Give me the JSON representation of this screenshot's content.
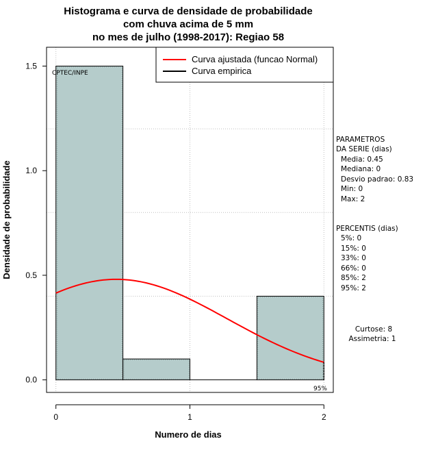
{
  "chart_data": {
    "type": "bar",
    "title_lines": [
      "Histograma e curva de densidade de probabilidade",
      "com chuva acima de 5 mm",
      "no mes de julho (1998-2017): Regiao 58"
    ],
    "xlabel": "Numero de dias",
    "ylabel": "Densidade de probabilidade",
    "xlim": [
      -0.07,
      2.07
    ],
    "ylim": [
      -0.06,
      1.59
    ],
    "x_ticks": [
      0,
      1,
      2
    ],
    "y_ticks": [
      0.0,
      0.5,
      1.0,
      1.5
    ],
    "x_tick_labels": [
      "0",
      "1",
      "2"
    ],
    "y_tick_labels": [
      "0.0",
      "0.5",
      "1.0",
      "1.5"
    ],
    "grid_x": [
      0,
      1,
      2
    ],
    "grid_y": [
      0.4,
      0.8,
      1.2
    ],
    "bins": [
      {
        "start": 0.0,
        "end": 0.5,
        "density": 1.5
      },
      {
        "start": 0.5,
        "end": 1.0,
        "density": 0.1
      },
      {
        "start": 1.0,
        "end": 1.5,
        "density": 0.0
      },
      {
        "start": 1.5,
        "end": 2.0,
        "density": 0.4
      }
    ],
    "fitted_curve": {
      "name": "Curva ajustada (funcao Normal)",
      "distribution": "normal",
      "mean": 0.45,
      "sd": 0.83,
      "x_range": [
        0,
        2
      ]
    },
    "empirical_curve": {
      "name": "Curva empirica"
    },
    "legend_position": "top-right",
    "annotations": {
      "source": "CPTEC/INPE",
      "percentile_marker": "95%"
    },
    "colors": {
      "bar_fill": "#b5cccb",
      "fitted": "#ff0000",
      "empirical": "#000000",
      "grid": "#bebebe"
    }
  },
  "side_panel": {
    "params_header_1": "PARAMETROS",
    "params_header_2": "DA SERIE (dias)",
    "params": [
      "Media: 0.45",
      "Mediana: 0",
      "Desvio padrao: 0.83",
      "Min: 0",
      "Max: 2"
    ],
    "percentis_header": "PERCENTIS (dias)",
    "percentis": [
      "5%: 0",
      "15%: 0",
      "33%: 0",
      "66%: 0",
      "85%: 2",
      "95%: 2"
    ],
    "curtose": "Curtose: 8",
    "assimetria": "Assimetria: 1"
  }
}
